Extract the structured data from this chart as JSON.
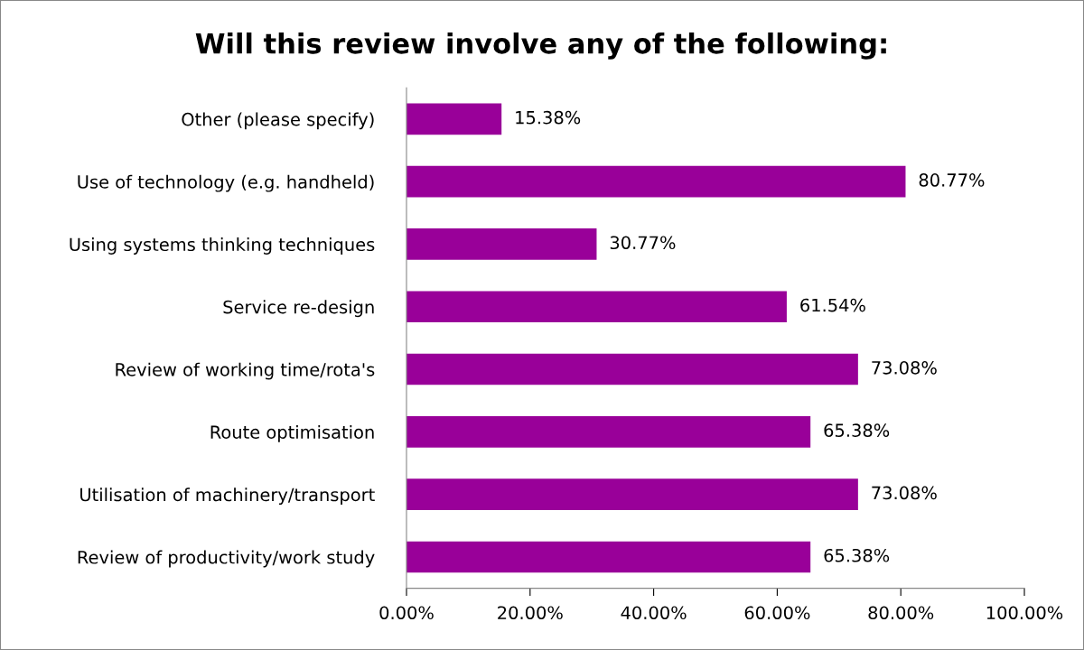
{
  "chart_data": {
    "type": "bar",
    "orientation": "horizontal",
    "title": "Will this review involve any of the following:",
    "categories": [
      "Other (please specify)",
      "Use of technology (e.g. handheld)",
      "Using systems thinking techniques",
      "Service re-design",
      "Review of working time/rota's",
      "Route optimisation",
      "Utilisation of machinery/transport",
      "Review of productivity/work study"
    ],
    "values": [
      15.38,
      80.77,
      30.77,
      61.54,
      73.08,
      65.38,
      73.08,
      65.38
    ],
    "value_labels": [
      "15.38%",
      "80.77%",
      "30.77%",
      "61.54%",
      "73.08%",
      "65.38%",
      "73.08%",
      "65.38%"
    ],
    "color": "#990099",
    "xlim": [
      0,
      100
    ],
    "xticks": [
      {
        "value": 0,
        "label": "0.00%"
      },
      {
        "value": 20,
        "label": "20.00%"
      },
      {
        "value": 40,
        "label": "40.00%"
      },
      {
        "value": 60,
        "label": "60.00%"
      },
      {
        "value": 80,
        "label": "80.00%"
      },
      {
        "value": 100,
        "label": "100.00%"
      }
    ],
    "grid": false,
    "legend": false
  }
}
